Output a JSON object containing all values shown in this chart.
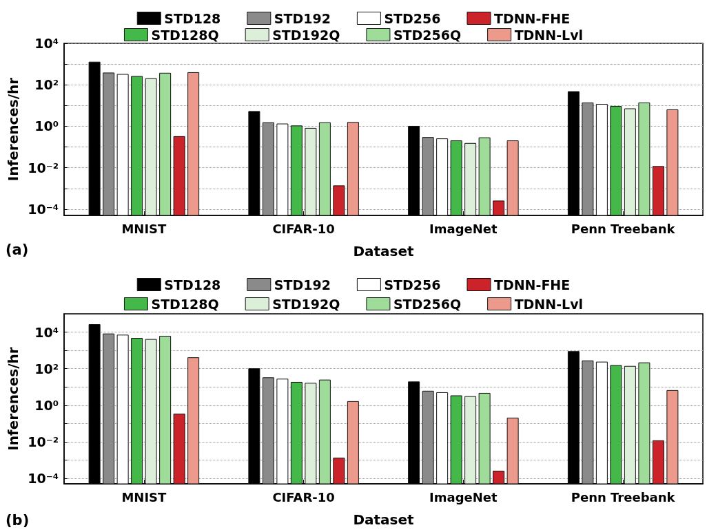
{
  "chart_data": [
    {
      "type": "bar",
      "xlabel": "Dataset",
      "ylabel": "Inferences/hr",
      "annotations": [
        "(a)"
      ],
      "log": "y",
      "grid": "y",
      "legend": "top",
      "categories": [
        "MNIST",
        "CIFAR-10",
        "ImageNet",
        "Penn Treebank"
      ],
      "ylim": [
        5e-05,
        10000
      ],
      "yticks": [
        {
          "value": 0.0001,
          "label": "10⁻⁴"
        },
        {
          "value": 0.001,
          "label": null
        },
        {
          "value": 0.01,
          "label": "10⁻²"
        },
        {
          "value": 0.1,
          "label": null
        },
        {
          "value": 1,
          "label": "10⁰"
        },
        {
          "value": 10,
          "label": null
        },
        {
          "value": 100,
          "label": "10²"
        },
        {
          "value": 1000,
          "label": null
        },
        {
          "value": 10000,
          "label": "10⁴"
        }
      ],
      "series": [
        {
          "name": "STD128",
          "color": "#000000",
          "values": [
            1250,
            5.2,
            1.0,
            47
          ]
        },
        {
          "name": "STD192",
          "color": "#8a8a8a",
          "values": [
            375,
            1.5,
            0.29,
            13.5
          ]
        },
        {
          "name": "STD256",
          "color": "#ffffff",
          "values": [
            320,
            1.3,
            0.25,
            11.5
          ]
        },
        {
          "name": "STD128Q",
          "color": "#44b848",
          "values": [
            255,
            1.05,
            0.2,
            9.1
          ]
        },
        {
          "name": "STD192Q",
          "color": "#dcefd8",
          "values": [
            200,
            0.8,
            0.15,
            7.0
          ]
        },
        {
          "name": "STD256Q",
          "color": "#9fdc9a",
          "values": [
            365,
            1.5,
            0.28,
            13.5
          ]
        },
        {
          "name": "TDNN-FHE",
          "color": "#cc2229",
          "values": [
            0.32,
            0.00135,
            0.00025,
            0.0115
          ]
        },
        {
          "name": "TDNN-Lvl",
          "color": "#ec9a8c",
          "values": [
            390,
            1.55,
            0.2,
            6.3
          ]
        }
      ]
    },
    {
      "type": "bar",
      "xlabel": "Dataset",
      "ylabel": "Inferences/hr",
      "annotations": [
        "(b)"
      ],
      "log": "y",
      "grid": "y",
      "legend": "top",
      "categories": [
        "MNIST",
        "CIFAR-10",
        "ImageNet",
        "Penn Treebank"
      ],
      "ylim": [
        5e-05,
        100000
      ],
      "yticks": [
        {
          "value": 0.0001,
          "label": "10⁻⁴"
        },
        {
          "value": 0.001,
          "label": null
        },
        {
          "value": 0.01,
          "label": "10⁻²"
        },
        {
          "value": 0.1,
          "label": null
        },
        {
          "value": 1,
          "label": "10⁰"
        },
        {
          "value": 10,
          "label": null
        },
        {
          "value": 100,
          "label": "10²"
        },
        {
          "value": 1000,
          "label": null
        },
        {
          "value": 10000,
          "label": "10⁴"
        }
      ],
      "series": [
        {
          "name": "STD128",
          "color": "#000000",
          "values": [
            26000,
            100,
            19,
            870
          ]
        },
        {
          "name": "STD192",
          "color": "#8a8a8a",
          "values": [
            8000,
            32,
            5.9,
            270
          ]
        },
        {
          "name": "STD256",
          "color": "#ffffff",
          "values": [
            6900,
            27,
            4.9,
            230
          ]
        },
        {
          "name": "STD128Q",
          "color": "#44b848",
          "values": [
            4600,
            18,
            3.3,
            150
          ]
        },
        {
          "name": "STD192Q",
          "color": "#dcefd8",
          "values": [
            4000,
            16,
            3.0,
            135
          ]
        },
        {
          "name": "STD256Q",
          "color": "#9fdc9a",
          "values": [
            6000,
            24,
            4.5,
            210
          ]
        },
        {
          "name": "TDNN-FHE",
          "color": "#cc2229",
          "values": [
            0.33,
            0.0013,
            0.00025,
            0.0115
          ]
        },
        {
          "name": "TDNN-Lvl",
          "color": "#ec9a8c",
          "values": [
            400,
            1.6,
            0.2,
            6.4
          ]
        }
      ]
    }
  ]
}
